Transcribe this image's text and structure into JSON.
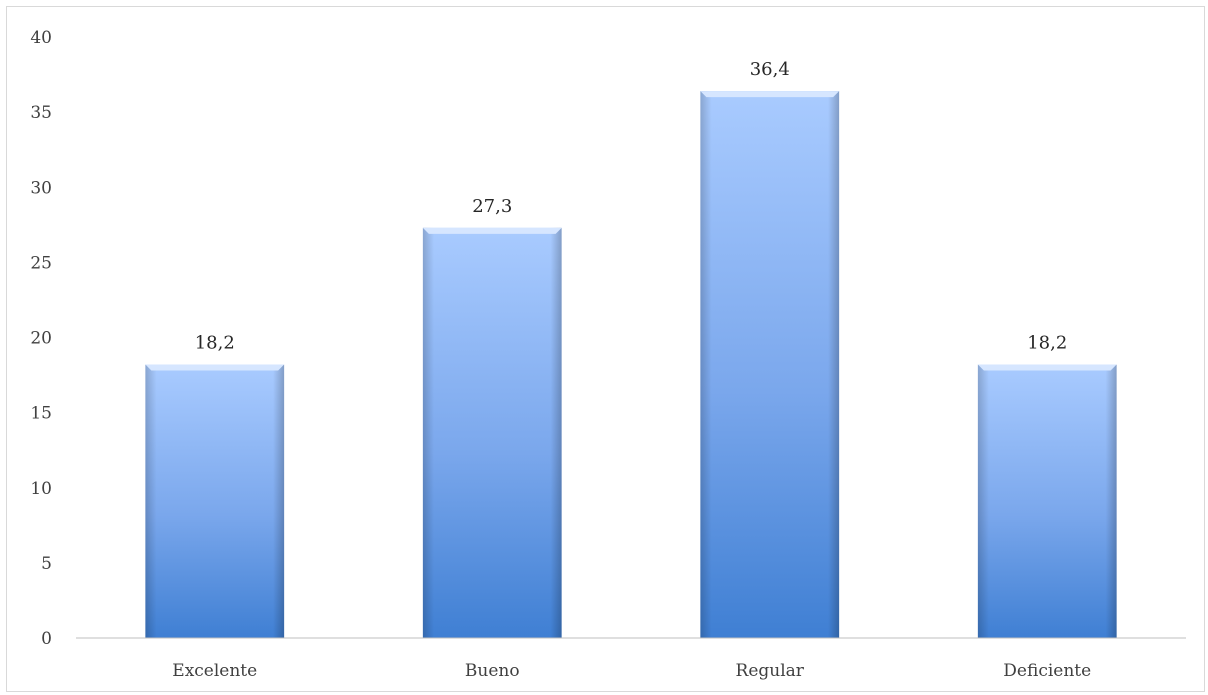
{
  "chart_data": {
    "type": "bar",
    "title": "",
    "xlabel": "",
    "ylabel": "",
    "categories": [
      "Excelente",
      "Bueno",
      "Regular",
      "Deficiente"
    ],
    "values": [
      18.2,
      27.3,
      36.4,
      18.2
    ],
    "data_labels": [
      "18,2",
      "27,3",
      "36,4",
      "18,2"
    ],
    "ylim": [
      0,
      40
    ],
    "yticks": [
      0,
      5,
      10,
      15,
      20,
      25,
      30,
      35,
      40
    ],
    "grid": false,
    "legend": "none",
    "colors": {
      "bar_top": "#a9cbff",
      "bar_mid": "#7aa7ec",
      "bar_bottom": "#3f7fd3",
      "bar_cap": "#d6e6ff",
      "axis": "#bfbfbf",
      "text": "#404040"
    }
  }
}
